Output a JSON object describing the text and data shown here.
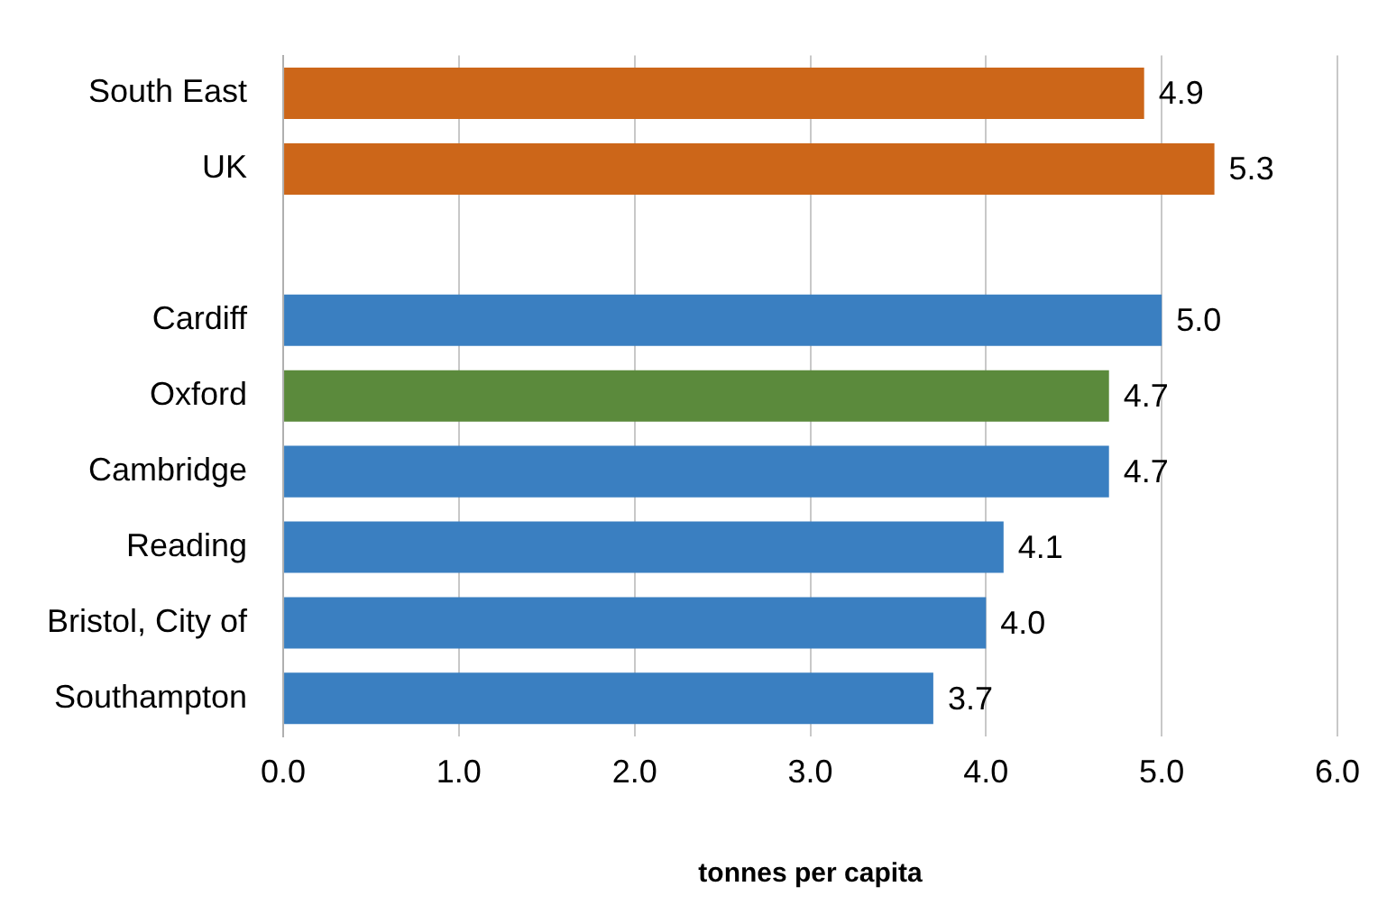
{
  "chart_data": {
    "type": "bar",
    "orientation": "horizontal",
    "xlabel": "tonnes per capita",
    "categories": [
      "South East",
      "UK",
      null,
      "Cardiff",
      "Oxford",
      "Cambridge",
      "Reading",
      "Bristol, City of",
      "Southampton"
    ],
    "values": [
      4.9,
      5.3,
      null,
      5.0,
      4.7,
      4.7,
      4.1,
      4.0,
      3.7
    ],
    "colors": [
      "#cc6619",
      "#cc6619",
      "#3a7fc1",
      "#3a7fc1",
      "#5b8a3c",
      "#3a7fc1",
      "#3a7fc1",
      "#3a7fc1",
      "#3a7fc1"
    ],
    "value_labels": [
      "4.9",
      "5.3",
      null,
      "5.0",
      "4.7",
      "4.7",
      "4.1",
      "4.0",
      "3.7"
    ],
    "xlim": [
      0,
      6
    ],
    "xticks": [
      {
        "value": 0,
        "label": "0.0"
      },
      {
        "value": 1,
        "label": "1.0"
      },
      {
        "value": 2,
        "label": "2.0"
      },
      {
        "value": 3,
        "label": "3.0"
      },
      {
        "value": 4,
        "label": "4.0"
      },
      {
        "value": 5,
        "label": "5.0"
      },
      {
        "value": 6,
        "label": "6.0"
      }
    ],
    "grid": "x",
    "legend": false
  }
}
